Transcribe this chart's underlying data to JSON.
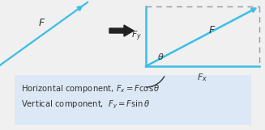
{
  "bg_color": "#f0f0f0",
  "arrow_color": "#3bbee8",
  "box_border_solid_color": "#3bbee8",
  "dashed_border_color": "#999999",
  "big_arrow_color": "#222222",
  "text_color": "#333333",
  "text_box_bg": "#dce8f5",
  "line1": "Horizontal component, $F_x = F \\cos \\theta$",
  "line2": "Vertical component,  $F_y = F \\sin \\theta$",
  "F_label": "$F$",
  "Fx_label": "$F_x$",
  "Fy_label": "$F_y$",
  "theta_label": "$\\theta$",
  "figw": 3.27,
  "figh": 1.61,
  "dpi": 100
}
